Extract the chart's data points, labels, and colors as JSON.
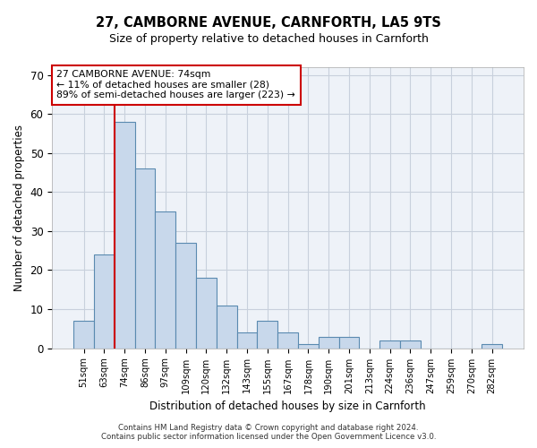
{
  "title1": "27, CAMBORNE AVENUE, CARNFORTH, LA5 9TS",
  "title2": "Size of property relative to detached houses in Carnforth",
  "xlabel": "Distribution of detached houses by size in Carnforth",
  "ylabel": "Number of detached properties",
  "categories": [
    "51sqm",
    "63sqm",
    "74sqm",
    "86sqm",
    "97sqm",
    "109sqm",
    "120sqm",
    "132sqm",
    "143sqm",
    "155sqm",
    "167sqm",
    "178sqm",
    "190sqm",
    "201sqm",
    "213sqm",
    "224sqm",
    "236sqm",
    "247sqm",
    "259sqm",
    "270sqm",
    "282sqm"
  ],
  "values": [
    7,
    24,
    58,
    46,
    35,
    27,
    18,
    11,
    4,
    7,
    4,
    1,
    3,
    3,
    0,
    2,
    2,
    0,
    0,
    0,
    1
  ],
  "bar_color": "#c8d8eb",
  "bar_edge_color": "#5a8ab0",
  "bar_edge_width": 0.8,
  "highlight_bar_index": 2,
  "highlight_line_color": "#cc0000",
  "ylim": [
    0,
    72
  ],
  "yticks": [
    0,
    10,
    20,
    30,
    40,
    50,
    60,
    70
  ],
  "annotation_box_text": "27 CAMBORNE AVENUE: 74sqm\n← 11% of detached houses are smaller (28)\n89% of semi-detached houses are larger (223) →",
  "annotation_box_color": "#cc0000",
  "annotation_box_bg": "#ffffff",
  "footer1": "Contains HM Land Registry data © Crown copyright and database right 2024.",
  "footer2": "Contains public sector information licensed under the Open Government Licence v3.0.",
  "background_color": "#eef2f8",
  "grid_color": "#c8d0dc"
}
